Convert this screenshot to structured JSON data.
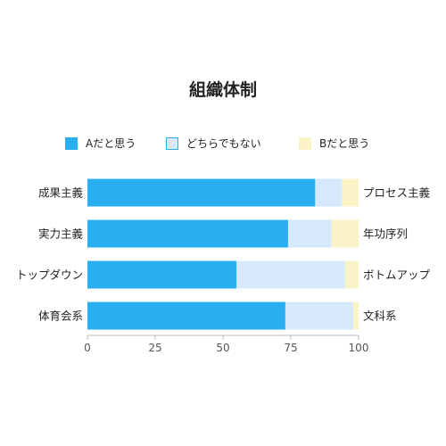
{
  "chart_data": {
    "type": "bar",
    "orientation": "horizontal",
    "stacked": true,
    "title": "組織体制",
    "categories": [
      "成果主義",
      "実力主義",
      "トップダウン",
      "体育会系"
    ],
    "right_labels": [
      "プロセス主義",
      "年功序列",
      "ボトムアップ",
      "文科系"
    ],
    "series": [
      {
        "name": "Aだと思う",
        "values": [
          84,
          74,
          55,
          73
        ],
        "color": "#29aff0"
      },
      {
        "name": "どちらでもない",
        "values": [
          10,
          16,
          40,
          25
        ],
        "color": "#d6e9fb"
      },
      {
        "name": "Bだと思う",
        "values": [
          6,
          10,
          5,
          2
        ],
        "color": "#fbf3c8"
      }
    ],
    "xlim": [
      0,
      100
    ],
    "xticks": [
      "0",
      "25",
      "50",
      "75",
      "100"
    ],
    "legend_position": "top",
    "grid": false
  }
}
